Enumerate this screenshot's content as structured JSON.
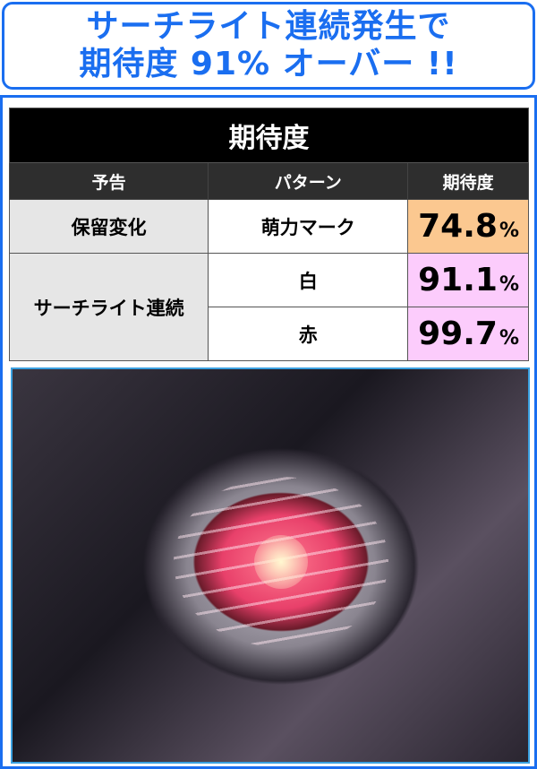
{
  "headline": {
    "line1": "サーチライト連続発生で",
    "line2": "期待度 91% オーバー !!"
  },
  "table": {
    "title": "期待度",
    "headers": [
      "予告",
      "パターン",
      "期待度"
    ],
    "groups": [
      {
        "label": "保留変化",
        "rows": [
          {
            "pattern": "萌力マーク",
            "value": "74.8",
            "unit": "%",
            "color": "#fbc890"
          }
        ]
      },
      {
        "label": "サーチライト連続",
        "rows": [
          {
            "pattern": "白",
            "value": "91.1",
            "unit": "%",
            "color": "#fcccfc"
          },
          {
            "pattern": "赤",
            "value": "99.7",
            "unit": "%",
            "color": "#fcccfc"
          }
        ]
      }
    ]
  },
  "accent": "#1a6ef0"
}
